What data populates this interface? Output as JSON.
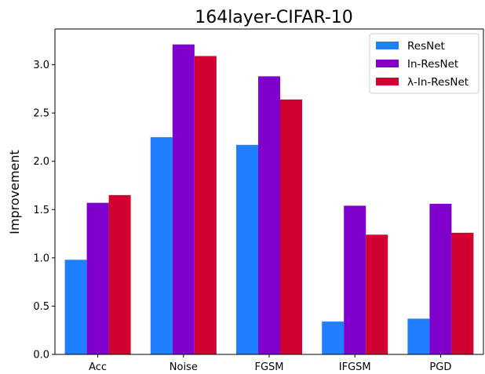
{
  "chart_data": {
    "type": "bar",
    "title": "164layer-CIFAR-10",
    "xlabel": "",
    "ylabel": "Improvement",
    "categories": [
      "Acc",
      "Noise",
      "FGSM",
      "IFGSM",
      "PGD"
    ],
    "series": [
      {
        "name": "ResNet",
        "color": "#1f7fff",
        "values": [
          0.98,
          2.25,
          2.17,
          0.34,
          0.37
        ]
      },
      {
        "name": "In-ResNet",
        "color": "#7f00cc",
        "values": [
          1.57,
          3.21,
          2.88,
          1.54,
          1.56
        ]
      },
      {
        "name": "λ-In-ResNet",
        "color": "#d20030",
        "values": [
          1.65,
          3.09,
          2.64,
          1.24,
          1.26
        ]
      }
    ],
    "ylim": [
      0,
      3.37
    ],
    "yticks": [
      "0.0",
      "0.5",
      "1.0",
      "1.5",
      "2.0",
      "2.5",
      "3.0"
    ],
    "grid": false,
    "legend_position": "top-right"
  }
}
